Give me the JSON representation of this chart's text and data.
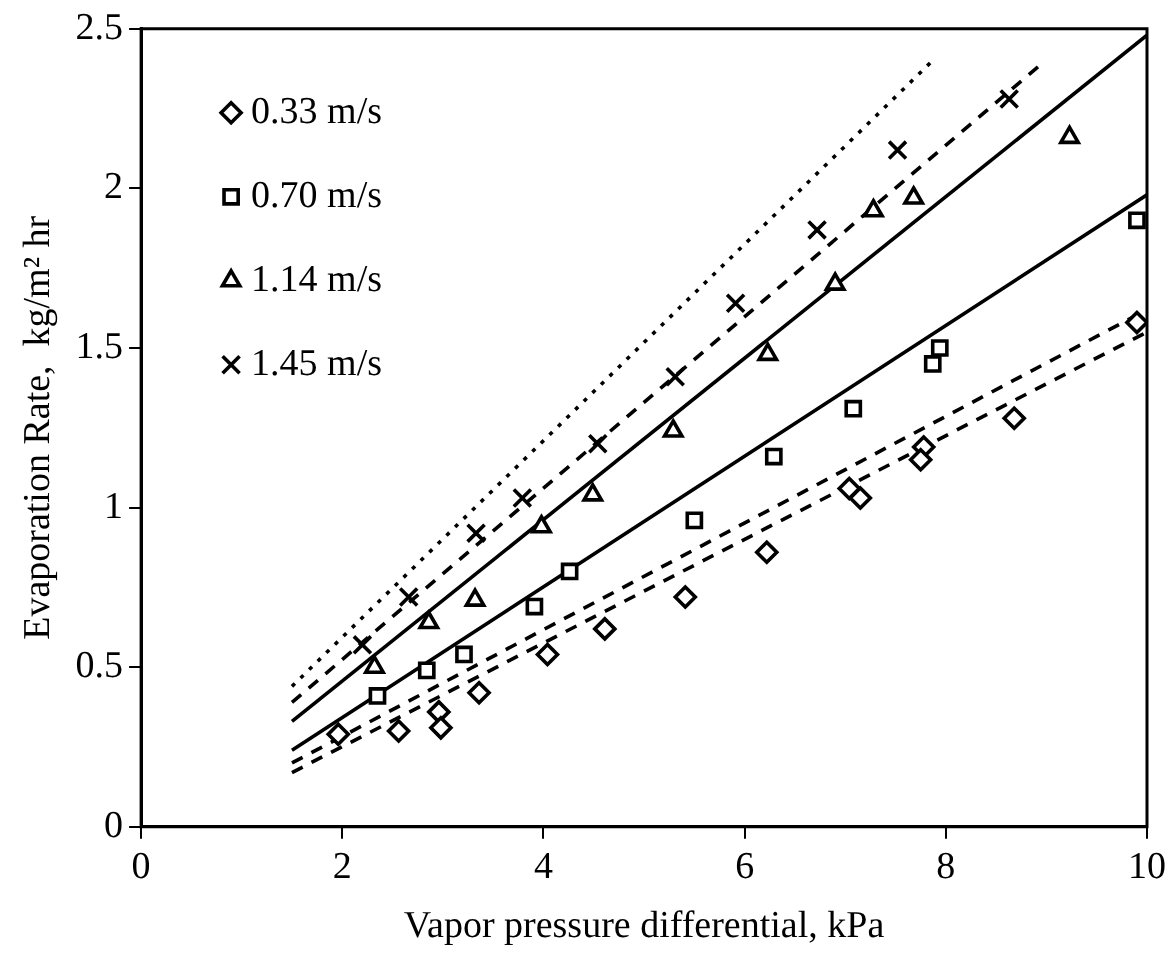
{
  "chart_data": {
    "type": "scatter",
    "xlabel": "Vapor pressure differential, kPa",
    "ylabel": "Evaporation Rate,  kg/m² hr",
    "xlim": [
      0,
      10
    ],
    "xticks": [
      0,
      2,
      4,
      6,
      8,
      10
    ],
    "ylim": [
      0,
      2.5
    ],
    "yticks": [
      0,
      0.5,
      1,
      1.5,
      2,
      2.5
    ],
    "grid": false,
    "legend": "top left",
    "series": [
      {
        "name": "0.33 m/s",
        "color": "#000000",
        "marker": "diamond",
        "x": [
          1.96,
          2.56,
          2.96,
          2.98,
          3.36,
          4.04,
          4.61,
          5.41,
          6.22,
          7.04,
          7.15,
          7.78,
          7.75,
          8.68,
          9.9
        ],
        "values": [
          0.29,
          0.3,
          0.36,
          0.31,
          0.42,
          0.54,
          0.62,
          0.72,
          0.86,
          1.06,
          1.03,
          1.19,
          1.15,
          1.28,
          1.58
        ]
      },
      {
        "name": "0.70 m/s",
        "color": "#000000",
        "marker": "square",
        "x": [
          2.35,
          2.84,
          3.21,
          3.91,
          4.26,
          5.5,
          6.29,
          7.08,
          7.87,
          7.94,
          9.9
        ],
        "values": [
          0.41,
          0.49,
          0.54,
          0.69,
          0.8,
          0.96,
          1.16,
          1.31,
          1.45,
          1.5,
          1.9
        ]
      },
      {
        "name": "1.14 m/s",
        "color": "#000000",
        "marker": "triangle",
        "x": [
          2.32,
          2.86,
          3.32,
          3.98,
          4.49,
          5.29,
          6.23,
          6.9,
          7.28,
          7.68,
          9.23
        ],
        "values": [
          0.5,
          0.64,
          0.71,
          0.94,
          1.04,
          1.24,
          1.48,
          1.7,
          1.93,
          1.97,
          2.16
        ]
      },
      {
        "name": "1.45 m/s",
        "color": "#000000",
        "marker": "cross",
        "x": [
          2.2,
          2.66,
          3.33,
          3.79,
          4.54,
          5.31,
          5.91,
          6.72,
          7.52,
          8.63
        ],
        "values": [
          0.57,
          0.72,
          0.92,
          1.03,
          1.2,
          1.41,
          1.64,
          1.87,
          2.12,
          2.28
        ]
      },
      {
        "type": "line",
        "color": "#000000",
        "marker": "none",
        "line_style": "dashed",
        "x": [
          1.5,
          10
        ],
        "values": [
          0.2,
          1.62
        ]
      },
      {
        "type": "line",
        "color": "#000000",
        "marker": "none",
        "line_style": "dashed",
        "x": [
          1.5,
          10
        ],
        "values": [
          0.17,
          1.55
        ]
      },
      {
        "type": "line",
        "color": "#000000",
        "marker": "none",
        "line_style": "solid",
        "x": [
          1.5,
          10
        ],
        "values": [
          0.24,
          1.98
        ]
      },
      {
        "type": "line",
        "color": "#000000",
        "marker": "none",
        "line_style": "solid",
        "x": [
          1.5,
          10
        ],
        "values": [
          0.33,
          2.48
        ]
      },
      {
        "type": "line",
        "color": "#000000",
        "marker": "none",
        "line_style": "dotted",
        "x": [
          1.5,
          7.9
        ],
        "values": [
          0.44,
          2.41
        ]
      },
      {
        "type": "line",
        "color": "#000000",
        "marker": "none",
        "line_style": "dashed",
        "x": [
          1.5,
          8.95
        ],
        "values": [
          0.39,
          2.39
        ]
      }
    ]
  }
}
